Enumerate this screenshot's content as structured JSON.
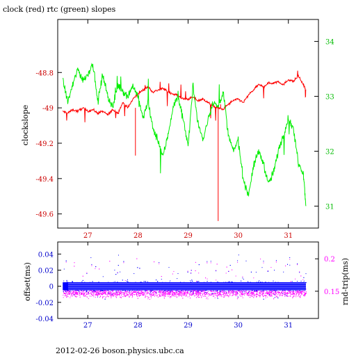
{
  "title": "clock (red) rtc (green) slopes",
  "footer": "2012-02-26  boson.physics.ubc.ca",
  "colors": {
    "clock": "#ff0000",
    "rtc": "#00ee00",
    "offset": "#0000ff",
    "roundtrip": "#ff00ff",
    "frame": "#000000"
  },
  "chart_data": [
    {
      "type": "line",
      "title": "clock (red) rtc (green) slopes",
      "ylabel": "clockslope",
      "y2label": "",
      "xlim": [
        26.4,
        31.6
      ],
      "ylim": [
        -49.68,
        -48.5
      ],
      "y2lim": [
        30.6,
        34.4
      ],
      "xticks": [
        27,
        28,
        29,
        30,
        31
      ],
      "xtick_labels": [
        "27",
        "28",
        "29",
        "30",
        "31"
      ],
      "yticks": [
        -49.6,
        -49.4,
        -49.2,
        -49,
        -48.8
      ],
      "ytick_labels": [
        "-49.6",
        "-49.4",
        "-49.2",
        "-49",
        "-48.8"
      ],
      "y2ticks": [
        31,
        32,
        33,
        34
      ],
      "y2tick_labels": [
        "31",
        "32",
        "33",
        "34"
      ],
      "series": [
        {
          "name": "clock",
          "axis": "left",
          "x": [
            26.5,
            26.6,
            26.7,
            26.8,
            26.9,
            27.0,
            27.1,
            27.2,
            27.3,
            27.4,
            27.5,
            27.6,
            27.7,
            27.8,
            27.9,
            28.0,
            28.1,
            28.2,
            28.3,
            28.4,
            28.5,
            28.6,
            28.7,
            28.8,
            28.9,
            29.0,
            29.1,
            29.2,
            29.3,
            29.4,
            29.5,
            29.6,
            29.7,
            29.8,
            29.9,
            30.0,
            30.1,
            30.2,
            30.3,
            30.4,
            30.5,
            30.6,
            30.7,
            30.8,
            30.9,
            31.0,
            31.1,
            31.2,
            31.3,
            31.35
          ],
          "y": [
            -49.02,
            -49.03,
            -49.01,
            -49.02,
            -49.0,
            -49.02,
            -49.01,
            -49.03,
            -49.02,
            -49.04,
            -49.01,
            -49.03,
            -48.97,
            -49.0,
            -48.95,
            -48.92,
            -48.9,
            -48.88,
            -48.91,
            -48.9,
            -48.89,
            -48.91,
            -48.92,
            -48.93,
            -48.95,
            -48.95,
            -48.94,
            -48.96,
            -48.95,
            -48.97,
            -48.99,
            -49.0,
            -49.01,
            -48.98,
            -48.96,
            -48.95,
            -48.97,
            -48.93,
            -48.9,
            -48.87,
            -48.88,
            -48.86,
            -48.86,
            -48.85,
            -48.87,
            -48.84,
            -48.85,
            -48.82,
            -48.87,
            -48.9
          ]
        },
        {
          "name": "rtc",
          "axis": "right",
          "x": [
            26.5,
            26.6,
            26.7,
            26.8,
            26.9,
            27.0,
            27.1,
            27.2,
            27.3,
            27.4,
            27.5,
            27.6,
            27.7,
            27.8,
            27.9,
            28.0,
            28.1,
            28.2,
            28.3,
            28.4,
            28.5,
            28.6,
            28.7,
            28.8,
            28.9,
            29.0,
            29.1,
            29.2,
            29.3,
            29.4,
            29.5,
            29.6,
            29.7,
            29.8,
            29.9,
            30.0,
            30.1,
            30.2,
            30.3,
            30.4,
            30.5,
            30.6,
            30.7,
            30.8,
            30.9,
            31.0,
            31.1,
            31.2,
            31.3,
            31.35
          ],
          "y": [
            33.3,
            32.9,
            33.2,
            33.5,
            33.3,
            33.4,
            33.6,
            32.9,
            33.4,
            33.0,
            32.8,
            33.2,
            33.1,
            33.0,
            33.2,
            33.0,
            32.6,
            32.9,
            32.4,
            32.2,
            31.9,
            32.3,
            32.8,
            33.0,
            32.6,
            32.1,
            33.2,
            32.5,
            32.2,
            32.6,
            32.9,
            32.8,
            33.1,
            32.3,
            32.0,
            32.2,
            31.5,
            31.2,
            31.7,
            32.0,
            31.8,
            31.4,
            31.6,
            32.0,
            32.3,
            32.6,
            32.4,
            31.8,
            31.6,
            31.0
          ]
        }
      ]
    },
    {
      "type": "scatter",
      "ylabel": "offset(ms)",
      "y2label": "rnd-trip(ms)",
      "xlim": [
        26.4,
        31.6
      ],
      "ylim": [
        -0.04,
        0.055
      ],
      "y2lim": [
        0.108,
        0.226
      ],
      "xticks": [
        27,
        28,
        29,
        30,
        31
      ],
      "xtick_labels": [
        "27",
        "28",
        "29",
        "30",
        "31"
      ],
      "yticks": [
        -0.04,
        -0.02,
        0,
        0.02,
        0.04
      ],
      "ytick_labels": [
        "-0.04",
        "-0.02",
        "0",
        "0.02",
        "0.04"
      ],
      "y2ticks": [
        0.15,
        0.2
      ],
      "y2tick_labels": [
        "0.15",
        "0.2"
      ],
      "series": [
        {
          "name": "offset",
          "axis": "left",
          "x_range": [
            26.5,
            31.35
          ],
          "center": 0.0,
          "spread": 0.008
        },
        {
          "name": "rnd-trip",
          "axis": "right",
          "x_range": [
            26.5,
            31.35
          ],
          "center": 0.148,
          "spread": 0.012
        }
      ]
    }
  ]
}
